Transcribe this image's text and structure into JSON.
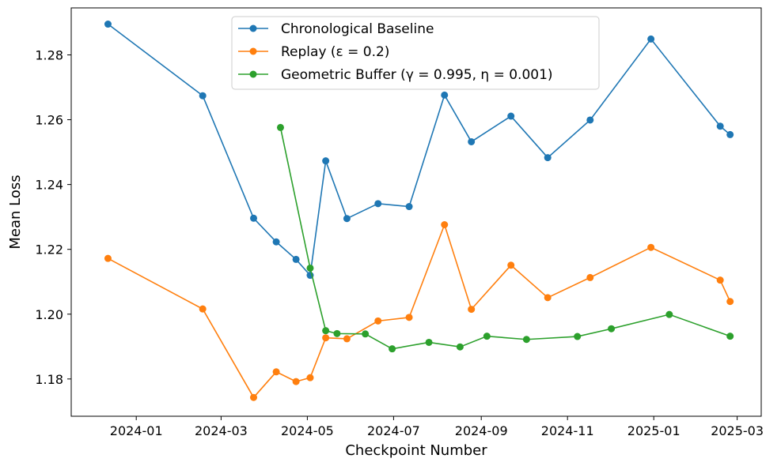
{
  "chart_data": {
    "type": "line",
    "title": "",
    "xlabel": "Checkpoint Number",
    "ylabel": "Mean Loss",
    "x_axis": "date",
    "xlim": [
      "2023-11-16",
      "2025-03-18"
    ],
    "ylim": [
      1.1685,
      1.2945
    ],
    "x_ticks": [
      "2024-01-01",
      "2024-03-01",
      "2024-05-01",
      "2024-07-01",
      "2024-09-01",
      "2024-11-01",
      "2025-01-01",
      "2025-03-01"
    ],
    "x_tick_labels": [
      "2024-01",
      "2024-03",
      "2024-05",
      "2024-07",
      "2024-09",
      "2024-11",
      "2025-01",
      "2025-03"
    ],
    "y_ticks": [
      1.18,
      1.2,
      1.22,
      1.24,
      1.26,
      1.28
    ],
    "y_tick_labels": [
      "1.18",
      "1.20",
      "1.22",
      "1.24",
      "1.26",
      "1.28"
    ],
    "grid": false,
    "legend_position": "top-center",
    "series": [
      {
        "name": "Chronological Baseline",
        "color": "#1f77b4",
        "points": [
          [
            "2023-12-12",
            1.2895
          ],
          [
            "2024-02-17",
            1.2674
          ],
          [
            "2024-03-24",
            1.2296
          ],
          [
            "2024-04-09",
            1.2223
          ],
          [
            "2024-04-23",
            1.2169
          ],
          [
            "2024-05-03",
            1.212
          ],
          [
            "2024-05-14",
            1.2473
          ],
          [
            "2024-05-29",
            1.2295
          ],
          [
            "2024-06-20",
            1.2341
          ],
          [
            "2024-07-12",
            1.2332
          ],
          [
            "2024-08-06",
            1.2676
          ],
          [
            "2024-08-25",
            1.2532
          ],
          [
            "2024-09-22",
            1.2611
          ],
          [
            "2024-10-18",
            1.2483
          ],
          [
            "2024-11-17",
            1.2599
          ],
          [
            "2024-12-30",
            1.2849
          ],
          [
            "2025-02-17",
            1.258
          ],
          [
            "2025-02-24",
            1.2554
          ]
        ]
      },
      {
        "name": "Replay (ε = 0.2)",
        "color": "#ff7f0e",
        "points": [
          [
            "2023-12-12",
            1.2172
          ],
          [
            "2024-02-17",
            1.2016
          ],
          [
            "2024-03-24",
            1.1743
          ],
          [
            "2024-04-09",
            1.1822
          ],
          [
            "2024-04-23",
            1.1792
          ],
          [
            "2024-05-03",
            1.1804
          ],
          [
            "2024-05-14",
            1.1927
          ],
          [
            "2024-05-29",
            1.1924
          ],
          [
            "2024-06-20",
            1.1979
          ],
          [
            "2024-07-12",
            1.199
          ],
          [
            "2024-08-06",
            1.2276
          ],
          [
            "2024-08-25",
            1.2015
          ],
          [
            "2024-09-22",
            1.2151
          ],
          [
            "2024-10-18",
            1.2051
          ],
          [
            "2024-11-17",
            1.2113
          ],
          [
            "2024-12-30",
            1.2206
          ],
          [
            "2025-02-17",
            1.2105
          ],
          [
            "2025-02-24",
            1.2039
          ]
        ]
      },
      {
        "name": "Geometric Buffer (γ = 0.995, η = 0.001)",
        "color": "#2ca02c",
        "points": [
          [
            "2024-04-12",
            1.2576
          ],
          [
            "2024-05-03",
            1.2142
          ],
          [
            "2024-05-14",
            1.1949
          ],
          [
            "2024-05-22",
            1.194
          ],
          [
            "2024-06-11",
            1.1939
          ],
          [
            "2024-06-30",
            1.1893
          ],
          [
            "2024-07-26",
            1.1913
          ],
          [
            "2024-08-17",
            1.1899
          ],
          [
            "2024-09-05",
            1.1932
          ],
          [
            "2024-10-03",
            1.1922
          ],
          [
            "2024-11-08",
            1.1931
          ],
          [
            "2024-12-02",
            1.1955
          ],
          [
            "2025-01-12",
            1.1999
          ],
          [
            "2025-02-24",
            1.1932
          ]
        ]
      }
    ]
  }
}
